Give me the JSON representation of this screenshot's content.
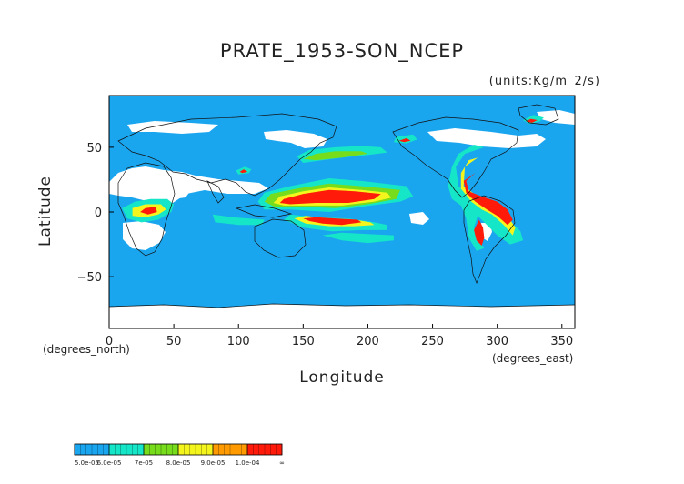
{
  "title": "PRATE_1953-SON_NCEP",
  "units": "(units:Kg/m¯2/s)",
  "chart_data": {
    "type": "heatmap",
    "title": "PRATE_1953-SON_NCEP",
    "xlabel": "Longitude",
    "ylabel": "Latitude",
    "x_caption": "(degrees_east)",
    "y_caption": "(degrees_north)",
    "xlim": [
      0,
      360
    ],
    "ylim": [
      -90,
      90
    ],
    "xticks": [
      "0",
      "50",
      "100",
      "150",
      "200",
      "250",
      "300",
      "350"
    ],
    "yticks": [
      "50",
      "0",
      "−50"
    ],
    "xtick_values": [
      0,
      50,
      100,
      150,
      200,
      250,
      300,
      350
    ],
    "ytick_values": [
      50,
      0,
      -50
    ],
    "colorbar": {
      "labels": [
        "5.0e-05",
        "6.0e-05",
        "7e-05",
        "8.0e-05",
        "9.0e-05",
        "1.0e-04",
        "∞"
      ],
      "colors": [
        "#1aa5ef",
        "#15e6c8",
        "#76dc1c",
        "#f5f51e",
        "#ff9b00",
        "#ff1a0a"
      ],
      "below_color": "#ffffff"
    },
    "regions": [
      {
        "level": 1,
        "polygon": [
          [
            230,
            20
          ],
          [
            195,
            24
          ],
          [
            170,
            26
          ],
          [
            140,
            20
          ],
          [
            120,
            15
          ],
          [
            115,
            8
          ],
          [
            120,
            2
          ],
          [
            140,
            2
          ],
          [
            170,
            0
          ],
          [
            195,
            4
          ],
          [
            225,
            8
          ],
          [
            235,
            12
          ]
        ]
      },
      {
        "level": 2,
        "polygon": [
          [
            225,
            17
          ],
          [
            195,
            20
          ],
          [
            170,
            22
          ],
          [
            145,
            18
          ],
          [
            125,
            14
          ],
          [
            120,
            8
          ],
          [
            128,
            4
          ],
          [
            150,
            4
          ],
          [
            175,
            3
          ],
          [
            200,
            6
          ],
          [
            222,
            10
          ]
        ]
      },
      {
        "level": 3,
        "polygon": [
          [
            215,
            15
          ],
          [
            195,
            17
          ],
          [
            170,
            19
          ],
          [
            150,
            16
          ],
          [
            132,
            12
          ],
          [
            127,
            7
          ],
          [
            135,
            5
          ],
          [
            155,
            5
          ],
          [
            180,
            5
          ],
          [
            205,
            8
          ],
          [
            218,
            11
          ]
        ]
      },
      {
        "level": 5,
        "polygon": [
          [
            210,
            14
          ],
          [
            190,
            16
          ],
          [
            170,
            17
          ],
          [
            150,
            14
          ],
          [
            135,
            10
          ],
          [
            132,
            7
          ],
          [
            140,
            6
          ],
          [
            160,
            7
          ],
          [
            185,
            7
          ],
          [
            205,
            10
          ]
        ]
      },
      {
        "level": 1,
        "polygon": [
          [
            215,
            -14
          ],
          [
            195,
            -14
          ],
          [
            172,
            -15
          ],
          [
            150,
            -12
          ],
          [
            135,
            -6
          ],
          [
            140,
            -2
          ],
          [
            160,
            -4
          ],
          [
            185,
            -5
          ],
          [
            205,
            -8
          ],
          [
            215,
            -10
          ]
        ]
      },
      {
        "level": 3,
        "polygon": [
          [
            205,
            -10
          ],
          [
            190,
            -11
          ],
          [
            170,
            -11
          ],
          [
            152,
            -9
          ],
          [
            143,
            -5
          ],
          [
            152,
            -3
          ],
          [
            170,
            -5
          ],
          [
            190,
            -6
          ],
          [
            202,
            -8
          ]
        ]
      },
      {
        "level": 5,
        "polygon": [
          [
            195,
            -8
          ],
          [
            180,
            -10
          ],
          [
            165,
            -9
          ],
          [
            155,
            -7
          ],
          [
            150,
            -5
          ],
          [
            160,
            -4
          ],
          [
            175,
            -5
          ],
          [
            192,
            -6
          ]
        ]
      },
      {
        "level": 1,
        "polygon": [
          [
            175,
            50
          ],
          [
            155,
            48
          ],
          [
            145,
            43
          ],
          [
            150,
            38
          ],
          [
            165,
            40
          ],
          [
            180,
            42
          ],
          [
            200,
            44
          ],
          [
            215,
            46
          ],
          [
            210,
            50
          ],
          [
            195,
            51
          ]
        ]
      },
      {
        "level": 2,
        "polygon": [
          [
            175,
            47
          ],
          [
            160,
            45
          ],
          [
            150,
            41
          ],
          [
            160,
            40
          ],
          [
            180,
            42
          ],
          [
            200,
            45
          ],
          [
            195,
            47
          ]
        ]
      },
      {
        "level": 1,
        "polygon": [
          [
            220,
            -22
          ],
          [
            200,
            -24
          ],
          [
            180,
            -22
          ],
          [
            165,
            -18
          ],
          [
            180,
            -16
          ],
          [
            200,
            -17
          ],
          [
            220,
            -18
          ]
        ]
      },
      {
        "level": 1,
        "polygon": [
          [
            290,
            50
          ],
          [
            275,
            45
          ],
          [
            268,
            35
          ],
          [
            270,
            20
          ],
          [
            282,
            10
          ],
          [
            298,
            2
          ],
          [
            308,
            -5
          ],
          [
            318,
            -15
          ],
          [
            320,
            -22
          ],
          [
            310,
            -25
          ],
          [
            300,
            -18
          ],
          [
            290,
            -8
          ],
          [
            285,
            -3
          ],
          [
            282,
            -12
          ],
          [
            286,
            -22
          ],
          [
            290,
            -28
          ],
          [
            284,
            -30
          ],
          [
            278,
            -20
          ],
          [
            276,
            -5
          ],
          [
            272,
            5
          ],
          [
            265,
            10
          ],
          [
            262,
            20
          ],
          [
            265,
            35
          ],
          [
            270,
            45
          ],
          [
            282,
            52
          ]
        ]
      },
      {
        "level": 3,
        "polygon": [
          [
            285,
            42
          ],
          [
            275,
            35
          ],
          [
            274,
            20
          ],
          [
            285,
            12
          ],
          [
            298,
            6
          ],
          [
            308,
            -3
          ],
          [
            314,
            -12
          ],
          [
            312,
            -18
          ],
          [
            305,
            -10
          ],
          [
            296,
            -2
          ],
          [
            288,
            2
          ],
          [
            280,
            8
          ],
          [
            272,
            18
          ],
          [
            272,
            30
          ],
          [
            278,
            40
          ]
        ]
      },
      {
        "level": 5,
        "polygon": [
          [
            283,
            30
          ],
          [
            276,
            24
          ],
          [
            278,
            16
          ],
          [
            288,
            12
          ],
          [
            300,
            8
          ],
          [
            308,
            2
          ],
          [
            312,
            -6
          ],
          [
            308,
            -10
          ],
          [
            300,
            -3
          ],
          [
            292,
            2
          ],
          [
            283,
            8
          ],
          [
            276,
            15
          ],
          [
            274,
            24
          ]
        ]
      },
      {
        "level": 5,
        "polygon": [
          [
            286,
            -6
          ],
          [
            282,
            -14
          ],
          [
            284,
            -22
          ],
          [
            288,
            -26
          ],
          [
            290,
            -20
          ],
          [
            289,
            -12
          ]
        ]
      },
      {
        "level": 1,
        "polygon": [
          [
            235,
            60
          ],
          [
            222,
            58
          ],
          [
            220,
            54
          ],
          [
            230,
            53
          ],
          [
            238,
            56
          ]
        ]
      },
      {
        "level": 5,
        "polygon": [
          [
            230,
            57
          ],
          [
            224,
            55
          ],
          [
            228,
            54
          ],
          [
            233,
            55
          ]
        ]
      },
      {
        "level": 1,
        "polygon": [
          [
            328,
            75
          ],
          [
            320,
            71
          ],
          [
            325,
            68
          ],
          [
            333,
            70
          ],
          [
            336,
            73
          ]
        ]
      },
      {
        "level": 5,
        "polygon": [
          [
            326,
            72
          ],
          [
            322,
            70
          ],
          [
            327,
            69
          ],
          [
            331,
            71
          ]
        ]
      },
      {
        "level": 1,
        "polygon": [
          [
            45,
            10
          ],
          [
            32,
            10
          ],
          [
            20,
            8
          ],
          [
            10,
            3
          ],
          [
            14,
            -5
          ],
          [
            25,
            -8
          ],
          [
            38,
            -6
          ],
          [
            48,
            0
          ],
          [
            50,
            6
          ]
        ]
      },
      {
        "level": 3,
        "polygon": [
          [
            40,
            6
          ],
          [
            28,
            6
          ],
          [
            18,
            3
          ],
          [
            18,
            -3
          ],
          [
            28,
            -4
          ],
          [
            38,
            -2
          ],
          [
            44,
            2
          ]
        ]
      },
      {
        "level": 5,
        "polygon": [
          [
            36,
            4
          ],
          [
            28,
            3
          ],
          [
            24,
            0
          ],
          [
            30,
            -2
          ],
          [
            37,
            0
          ]
        ]
      },
      {
        "level": 1,
        "polygon": [
          [
            120,
            -6
          ],
          [
            95,
            -4
          ],
          [
            80,
            -2
          ],
          [
            82,
            -8
          ],
          [
            100,
            -10
          ],
          [
            118,
            -10
          ]
        ]
      },
      {
        "level": 1,
        "polygon": [
          [
            105,
            35
          ],
          [
            98,
            32
          ],
          [
            100,
            29
          ],
          [
            108,
            30
          ],
          [
            110,
            33
          ]
        ]
      },
      {
        "level": 5,
        "polygon": [
          [
            104,
            33
          ],
          [
            101,
            31
          ],
          [
            103,
            30
          ],
          [
            107,
            31
          ]
        ]
      }
    ]
  }
}
